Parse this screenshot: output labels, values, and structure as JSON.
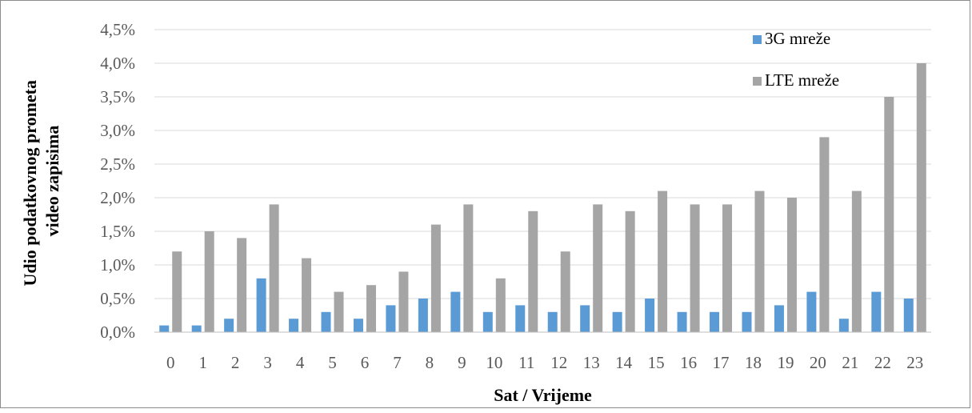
{
  "chart_data": {
    "type": "bar",
    "xlabel": "Sat / Vrijeme",
    "ylabel_lines": [
      "Udio podatkovnog prometa",
      "video zapisima"
    ],
    "categories": [
      "0",
      "1",
      "2",
      "3",
      "4",
      "5",
      "6",
      "7",
      "8",
      "9",
      "10",
      "11",
      "12",
      "13",
      "14",
      "15",
      "16",
      "17",
      "18",
      "19",
      "20",
      "21",
      "22",
      "23"
    ],
    "series": [
      {
        "name": "3G mreže",
        "color": "#5b9bd5",
        "values": [
          0.1,
          0.1,
          0.2,
          0.8,
          0.2,
          0.3,
          0.2,
          0.4,
          0.5,
          0.6,
          0.3,
          0.4,
          0.3,
          0.4,
          0.3,
          0.5,
          0.3,
          0.3,
          0.3,
          0.4,
          0.6,
          0.2,
          0.6,
          0.5
        ]
      },
      {
        "name": "LTE mreže",
        "color": "#a5a5a5",
        "values": [
          1.2,
          1.5,
          1.4,
          1.9,
          1.1,
          0.6,
          0.7,
          0.9,
          1.6,
          1.9,
          0.8,
          1.8,
          1.2,
          1.9,
          1.8,
          2.1,
          1.9,
          1.9,
          2.1,
          2.0,
          2.9,
          2.1,
          3.5,
          4.0
        ]
      }
    ],
    "ylim": [
      0,
      4.5
    ],
    "yticks": [
      "0,0%",
      "0,5%",
      "1,0%",
      "1,5%",
      "2,0%",
      "2,5%",
      "3,0%",
      "3,5%",
      "4,0%",
      "4,5%"
    ],
    "grid": true,
    "legend_position": "top-right"
  }
}
